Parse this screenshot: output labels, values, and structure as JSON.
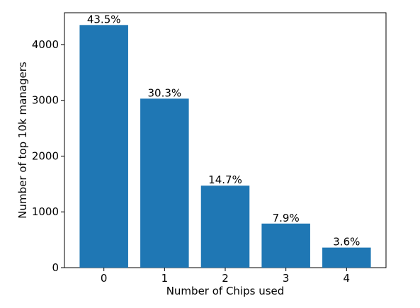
{
  "chart_data": {
    "type": "bar",
    "x_label": "Number of Chips used",
    "y_label": "Number of top 10k managers",
    "categories": [
      "0",
      "1",
      "2",
      "3",
      "4"
    ],
    "values": [
      4350,
      3030,
      1470,
      790,
      360
    ],
    "value_labels": [
      "43.5%",
      "30.3%",
      "14.7%",
      "7.9%",
      "3.6%"
    ],
    "color": "#1f77b4",
    "ylim": [
      0,
      4570
    ],
    "yticks": [
      0,
      1000,
      2000,
      3000,
      4000
    ],
    "grid": false
  }
}
